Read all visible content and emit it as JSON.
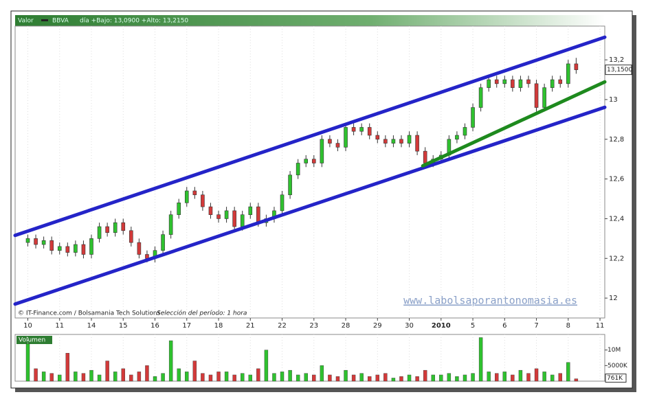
{
  "chart_data": {
    "type": "candlestick",
    "header": {
      "label": "Valor",
      "symbol": "BBVA",
      "info": "día +Bajo: 13,0900 +Alto: 13,2150"
    },
    "credit": "© IT-Finance.com / Bolsamania Tech Solutions",
    "period": "Selección del período: 1 hora",
    "watermark": "www.labolsaporantonomasia.es",
    "up_color": "#2fc12f",
    "down_color": "#d23a3a",
    "x": [
      0,
      1,
      2,
      3,
      4,
      5,
      6,
      7,
      8,
      9,
      10,
      11,
      12,
      13,
      14,
      15,
      16,
      17,
      18,
      19,
      20,
      21,
      22,
      23,
      24,
      25,
      26,
      27,
      28,
      29,
      30,
      31,
      32,
      33,
      34,
      35,
      36,
      37,
      38,
      39,
      40,
      41,
      42,
      43,
      44,
      45,
      46,
      47,
      48,
      49,
      50,
      51,
      52,
      53,
      54,
      55,
      56,
      57,
      58,
      59,
      60,
      61,
      62,
      63,
      64,
      65,
      66,
      67,
      68,
      69
    ],
    "open": [
      12.28,
      12.3,
      12.27,
      12.29,
      12.24,
      12.26,
      12.23,
      12.27,
      12.22,
      12.3,
      12.36,
      12.33,
      12.38,
      12.34,
      12.28,
      12.22,
      12.2,
      12.24,
      12.32,
      12.42,
      12.48,
      12.54,
      12.52,
      12.46,
      12.42,
      12.4,
      12.44,
      12.36,
      12.42,
      12.46,
      12.38,
      12.4,
      12.44,
      12.52,
      12.62,
      12.68,
      12.7,
      12.68,
      12.8,
      12.78,
      12.76,
      12.86,
      12.84,
      12.86,
      12.82,
      12.8,
      12.78,
      12.8,
      12.78,
      12.82,
      12.74,
      12.68,
      12.7,
      12.72,
      12.8,
      12.82,
      12.86,
      12.96,
      13.06,
      13.1,
      13.08,
      13.1,
      13.06,
      13.1,
      13.08,
      12.96,
      13.06,
      13.1,
      13.08,
      13.18
    ],
    "high": [
      12.32,
      12.32,
      12.31,
      12.31,
      12.28,
      12.28,
      12.29,
      12.29,
      12.32,
      12.38,
      12.38,
      12.4,
      12.4,
      12.36,
      12.3,
      12.24,
      12.26,
      12.34,
      12.44,
      12.5,
      12.56,
      12.56,
      12.54,
      12.48,
      12.44,
      12.46,
      12.46,
      12.44,
      12.48,
      12.48,
      12.42,
      12.46,
      12.54,
      12.64,
      12.7,
      12.72,
      12.72,
      12.82,
      12.82,
      12.8,
      12.88,
      12.88,
      12.88,
      12.88,
      12.84,
      12.82,
      12.82,
      12.82,
      12.84,
      12.84,
      12.76,
      12.72,
      12.74,
      12.82,
      12.84,
      12.88,
      12.98,
      13.08,
      13.12,
      13.12,
      13.12,
      13.12,
      13.12,
      13.12,
      13.1,
      13.08,
      13.12,
      13.12,
      13.2,
      13.21
    ],
    "low": [
      12.26,
      12.25,
      12.25,
      12.22,
      12.22,
      12.21,
      12.21,
      12.2,
      12.2,
      12.28,
      12.31,
      12.31,
      12.32,
      12.26,
      12.2,
      12.18,
      12.18,
      12.22,
      12.3,
      12.4,
      12.46,
      12.5,
      12.44,
      12.4,
      12.38,
      12.38,
      12.34,
      12.34,
      12.4,
      12.36,
      12.36,
      12.38,
      12.42,
      12.5,
      12.6,
      12.66,
      12.66,
      12.66,
      12.76,
      12.74,
      12.74,
      12.82,
      12.82,
      12.8,
      12.78,
      12.76,
      12.76,
      12.76,
      12.76,
      12.72,
      12.66,
      12.66,
      12.68,
      12.7,
      12.78,
      12.8,
      12.84,
      12.94,
      13.04,
      13.06,
      13.06,
      13.04,
      13.04,
      13.06,
      12.94,
      12.94,
      13.04,
      13.06,
      13.06,
      13.13
    ],
    "close": [
      12.3,
      12.27,
      12.29,
      12.24,
      12.26,
      12.23,
      12.27,
      12.22,
      12.3,
      12.36,
      12.33,
      12.38,
      12.34,
      12.28,
      12.22,
      12.2,
      12.24,
      12.32,
      12.42,
      12.48,
      12.54,
      12.52,
      12.46,
      12.42,
      12.4,
      12.44,
      12.36,
      12.42,
      12.46,
      12.38,
      12.4,
      12.44,
      12.52,
      12.62,
      12.68,
      12.7,
      12.68,
      12.8,
      12.78,
      12.76,
      12.86,
      12.84,
      12.86,
      12.82,
      12.8,
      12.78,
      12.8,
      12.78,
      12.82,
      12.74,
      12.68,
      12.7,
      12.72,
      12.8,
      12.82,
      12.86,
      12.96,
      13.06,
      13.1,
      13.08,
      13.1,
      13.06,
      13.1,
      13.08,
      12.96,
      13.06,
      13.1,
      13.08,
      13.18,
      13.15
    ],
    "xlim": [
      -1.6,
      72.6
    ],
    "ylim": [
      11.9,
      13.37
    ],
    "xticks": [
      {
        "value": 0,
        "label": "10"
      },
      {
        "value": 4,
        "label": "11"
      },
      {
        "value": 8,
        "label": "14"
      },
      {
        "value": 12,
        "label": "15"
      },
      {
        "value": 16,
        "label": "16"
      },
      {
        "value": 20,
        "label": "17"
      },
      {
        "value": 24,
        "label": "18"
      },
      {
        "value": 28,
        "label": "21"
      },
      {
        "value": 32,
        "label": "22"
      },
      {
        "value": 36,
        "label": "23"
      },
      {
        "value": 40,
        "label": "28"
      },
      {
        "value": 44,
        "label": "29"
      },
      {
        "value": 48,
        "label": "30"
      },
      {
        "value": 52,
        "label": "2010"
      },
      {
        "value": 56,
        "label": "5"
      },
      {
        "value": 60,
        "label": "6"
      },
      {
        "value": 64,
        "label": "7"
      },
      {
        "value": 68,
        "label": "8"
      },
      {
        "value": 72,
        "label": "11"
      }
    ],
    "yticks": [
      {
        "value": 13.2,
        "label": "13,2"
      },
      13,
      {
        "value": 12.8,
        "label": "12,8"
      },
      {
        "value": 12.6,
        "label": "12,6"
      },
      {
        "value": 12.4,
        "label": "12,4"
      },
      {
        "value": 12.2,
        "label": "12,2"
      },
      12
    ],
    "grid": true,
    "last_price": {
      "value": 13.15,
      "label": "13,1500"
    },
    "trendlines": [
      {
        "color": "#2424c8",
        "points": [
          [
            -1.6,
            12.316
          ],
          [
            72.6,
            13.314
          ]
        ]
      },
      {
        "color": "#2424c8",
        "points": [
          [
            -1.6,
            11.97
          ],
          [
            72.6,
            12.961
          ]
        ]
      },
      {
        "color": "#1e8a1e",
        "points": [
          [
            49.7,
            12.666
          ],
          [
            72.6,
            13.089
          ]
        ]
      }
    ],
    "volume": {
      "title": "Volumen",
      "values": [
        12000000,
        4000000,
        3000000,
        2500000,
        2000000,
        9000000,
        3000000,
        2500000,
        3500000,
        2000000,
        6500000,
        3000000,
        4000000,
        2000000,
        3000000,
        5000000,
        1500000,
        2500000,
        13000000,
        4000000,
        3000000,
        6500000,
        2500000,
        2000000,
        3000000,
        3000000,
        2000000,
        2500000,
        2000000,
        4000000,
        10000000,
        2500000,
        3000000,
        3500000,
        2000000,
        2500000,
        2000000,
        5000000,
        2000000,
        1500000,
        3500000,
        2000000,
        2500000,
        1500000,
        2000000,
        2500000,
        1000000,
        1500000,
        2000000,
        1500000,
        3500000,
        2000000,
        2000000,
        2500000,
        1500000,
        2000000,
        2500000,
        14000000,
        3000000,
        2500000,
        3000000,
        2000000,
        3500000,
        2500000,
        4000000,
        3000000,
        2000000,
        2500000,
        6000000,
        761000
      ],
      "ylim": [
        0,
        15000000
      ],
      "yticks": [
        {
          "value": 10000000,
          "label": "10M"
        },
        {
          "value": 5000000,
          "label": "5000K"
        }
      ],
      "last": {
        "value": 761000,
        "label": "761K"
      }
    }
  }
}
